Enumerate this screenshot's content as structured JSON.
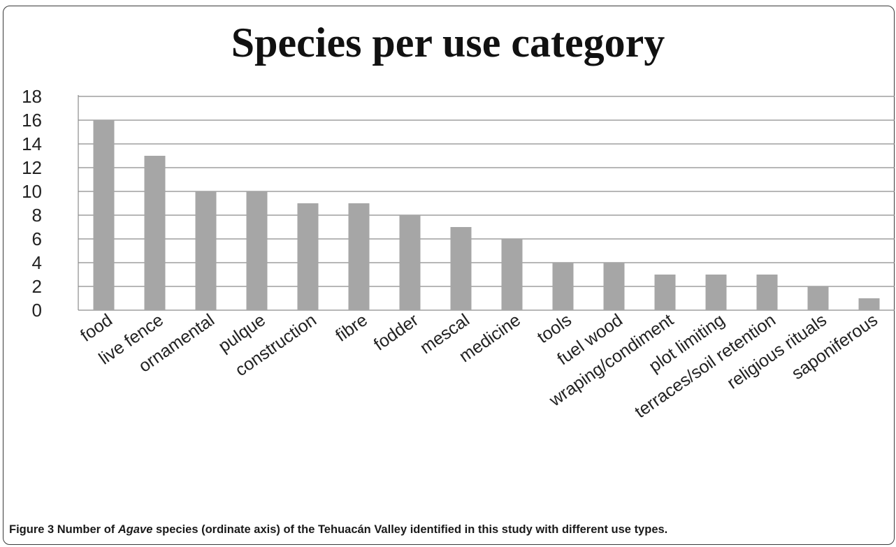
{
  "chart_data": {
    "type": "bar",
    "title": "Species per use category",
    "xlabel": "",
    "ylabel": "",
    "ylim": [
      0,
      18
    ],
    "yticks": [
      0,
      2,
      4,
      6,
      8,
      10,
      12,
      14,
      16,
      18
    ],
    "grid": true,
    "legend": "none",
    "bar_color": "#a6a6a6",
    "grid_color": "#8c8c8c",
    "categories": [
      "food",
      "live fence",
      "ornamental",
      "pulque",
      "construction",
      "fibre",
      "fodder",
      "mescal",
      "medicine",
      "tools",
      "fuel wood",
      "wraping/condiment",
      "plot limiting",
      "terraces/soil retention",
      "religious rituals",
      "saponiferous"
    ],
    "values": [
      16,
      13,
      10,
      10,
      9,
      9,
      8,
      7,
      6,
      4,
      4,
      3,
      3,
      3,
      2,
      1
    ]
  },
  "caption": {
    "prefix": "Figure 3 Number of ",
    "italic": "Agave",
    "suffix": " species (ordinate axis) of the Tehuacán Valley identified in this study with different use types."
  }
}
